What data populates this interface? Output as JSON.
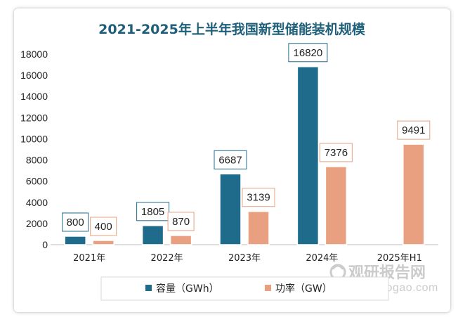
{
  "chart_data": {
    "type": "bar",
    "title": "2021-2025年上半年我国新型储能装机规模",
    "categories": [
      "2021年",
      "2022年",
      "2023年",
      "2024年",
      "2025年H1"
    ],
    "series": [
      {
        "name": "容量（GWh）",
        "color": "#1f6b8c",
        "label_border": "#1f6b8c",
        "values": [
          800,
          1805,
          6687,
          16820,
          null
        ],
        "labels": [
          "800",
          "1805",
          "6687",
          "16820",
          ""
        ]
      },
      {
        "name": "功率（GW）",
        "color": "#e8a080",
        "label_border": "#e6a07e",
        "values": [
          400,
          870,
          3139,
          7376,
          9491
        ],
        "labels": [
          "400",
          "870",
          "3139",
          "7376",
          "9491"
        ]
      }
    ],
    "ylim": [
      0,
      18000
    ],
    "yticks": [
      0,
      2000,
      4000,
      6000,
      8000,
      10000,
      12000,
      14000,
      16000,
      18000
    ],
    "xlabel": "",
    "ylabel": "",
    "grid": false,
    "legend_position": "bottom"
  },
  "watermark": {
    "brand": "观研报告网",
    "url": "chinabaogao.com"
  }
}
